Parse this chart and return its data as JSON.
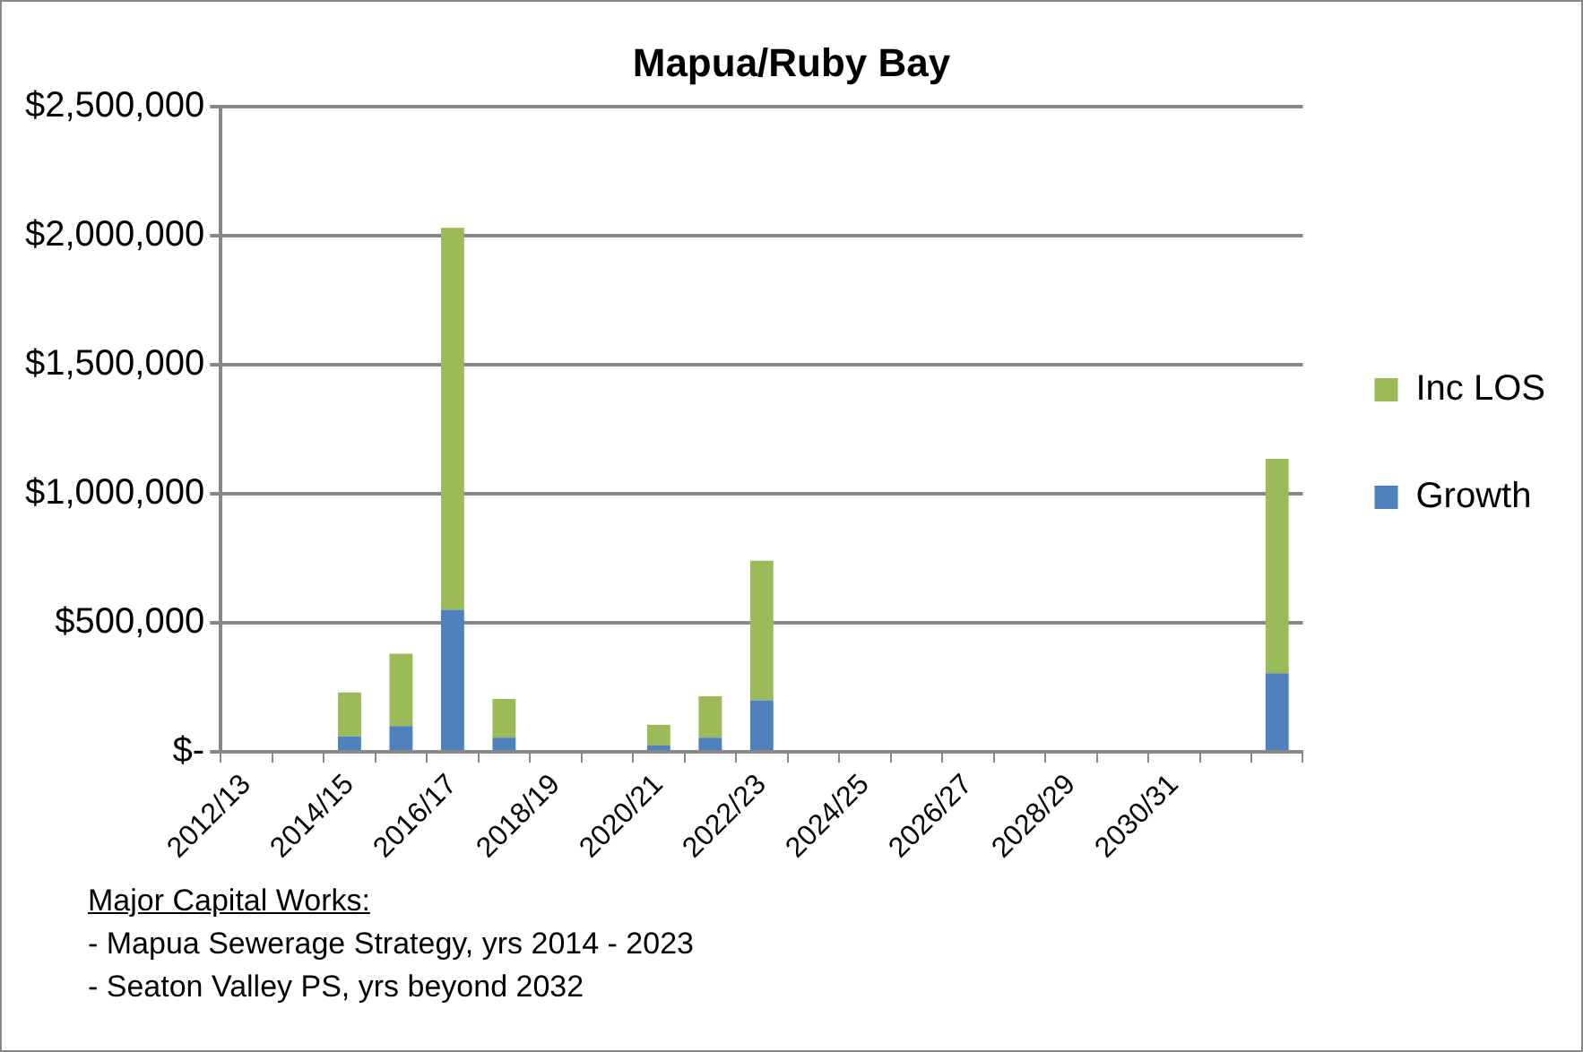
{
  "chart_data": {
    "type": "bar",
    "title": "Mapua/Ruby Bay",
    "stacked": true,
    "categories": [
      "2012/13",
      null,
      "2014/15",
      null,
      "2016/17",
      null,
      "2018/19",
      null,
      "2020/21",
      null,
      "2022/23",
      null,
      "2024/25",
      null,
      "2026/27",
      null,
      "2028/29",
      null,
      "2030/31",
      null,
      null
    ],
    "series": [
      {
        "name": "Growth",
        "color": "#4f81bd",
        "values": [
          0,
          0,
          60000,
          100000,
          550000,
          55000,
          0,
          0,
          25000,
          55000,
          200000,
          0,
          0,
          0,
          0,
          0,
          0,
          0,
          0,
          0,
          305000
        ]
      },
      {
        "name": "Inc LOS",
        "color": "#9bbb59",
        "values": [
          0,
          0,
          170000,
          280000,
          1480000,
          150000,
          0,
          0,
          80000,
          160000,
          540000,
          0,
          0,
          0,
          0,
          0,
          0,
          0,
          0,
          0,
          830000
        ]
      }
    ],
    "ylim": [
      0,
      2500000
    ],
    "yticks": [
      {
        "value": 0,
        "label": "$-"
      },
      {
        "value": 500000,
        "label": "$500,000"
      },
      {
        "value": 1000000,
        "label": "$1,000,000"
      },
      {
        "value": 1500000,
        "label": "$1,500,000"
      },
      {
        "value": 2000000,
        "label": "$2,000,000"
      },
      {
        "value": 2500000,
        "label": "$2,500,000"
      }
    ],
    "grid": "y",
    "legend": "right",
    "annotations": [
      "Major Capital Works:",
      "- Mapua Sewerage Strategy, yrs  2014 - 2023",
      "- Seaton Valley PS, yrs beyond 2032"
    ]
  }
}
